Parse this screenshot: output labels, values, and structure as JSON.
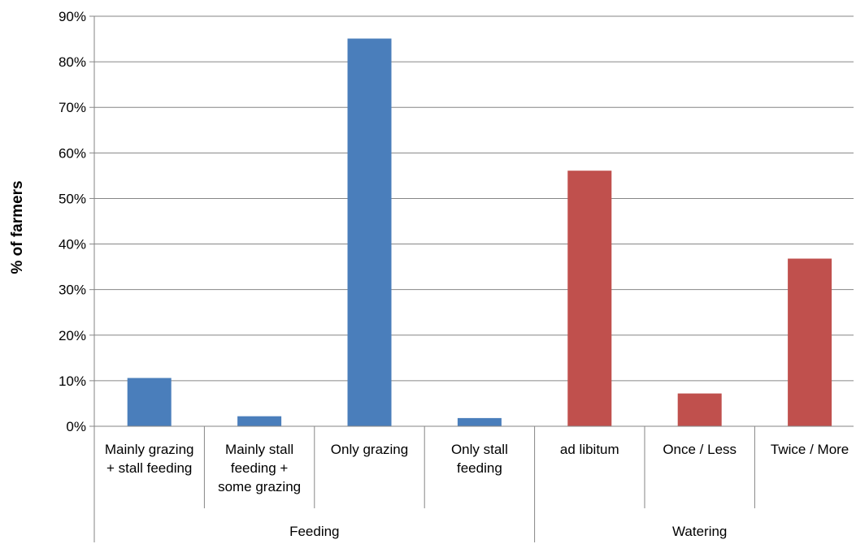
{
  "chart_data": {
    "type": "bar",
    "title": "",
    "ylabel": "% of farmers",
    "xlabel": "",
    "ylim": [
      0,
      90
    ],
    "yticks": [
      "0%",
      "10%",
      "20%",
      "30%",
      "40%",
      "50%",
      "60%",
      "70%",
      "80%",
      "90%"
    ],
    "grid": true,
    "legend": "none",
    "groups": [
      {
        "name": "Feeding",
        "color": "#4A7EBB",
        "categories": [
          [
            "Mainly grazing",
            "+ stall feeding"
          ],
          [
            "Mainly stall",
            "feeding +",
            "some grazing"
          ],
          [
            "Only grazing"
          ],
          [
            "Only stall",
            "feeding"
          ]
        ],
        "values": [
          10.6,
          2.2,
          85.1,
          1.8
        ]
      },
      {
        "name": "Watering",
        "color": "#C0504D",
        "categories": [
          [
            "ad libitum"
          ],
          [
            "Once / Less"
          ],
          [
            "Twice / More"
          ]
        ],
        "values": [
          56.1,
          7.2,
          36.8
        ]
      }
    ]
  }
}
